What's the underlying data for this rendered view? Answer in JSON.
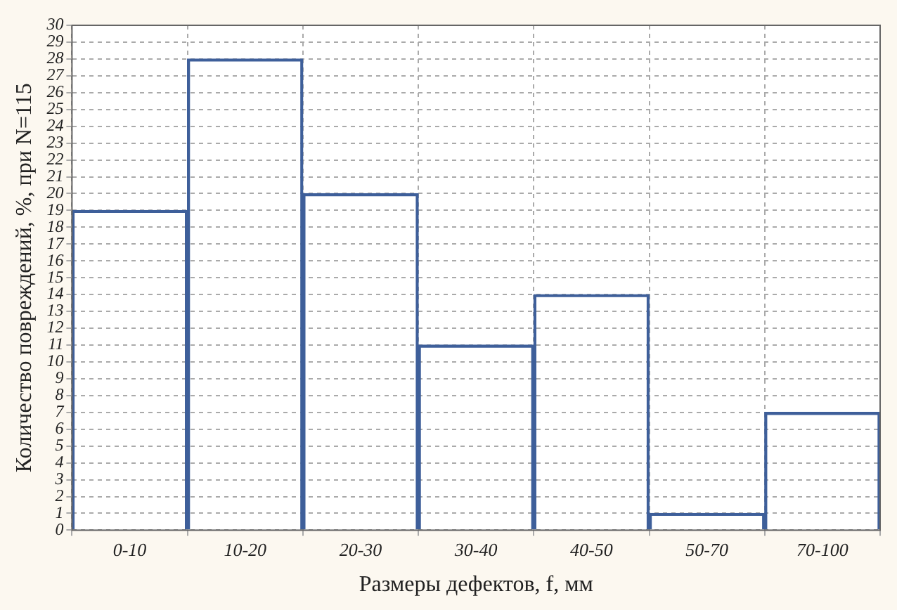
{
  "chart_data": {
    "type": "bar",
    "xlabel": "Размеры дефектов, f, мм",
    "ylabel": "Количество повреждений, %, при N=115",
    "categories": [
      "0-10",
      "10-20",
      "20-30",
      "30-40",
      "40-50",
      "50-70",
      "70-100"
    ],
    "values": [
      19,
      28,
      20,
      11,
      14,
      1,
      7
    ],
    "color": "#3e5f9a",
    "ylim": [
      0,
      30
    ],
    "yticks": [
      0,
      1,
      2,
      3,
      4,
      5,
      6,
      7,
      8,
      9,
      10,
      11,
      12,
      13,
      14,
      15,
      16,
      17,
      18,
      19,
      20,
      21,
      22,
      23,
      24,
      25,
      26,
      27,
      28,
      29,
      30
    ],
    "grid": true
  }
}
